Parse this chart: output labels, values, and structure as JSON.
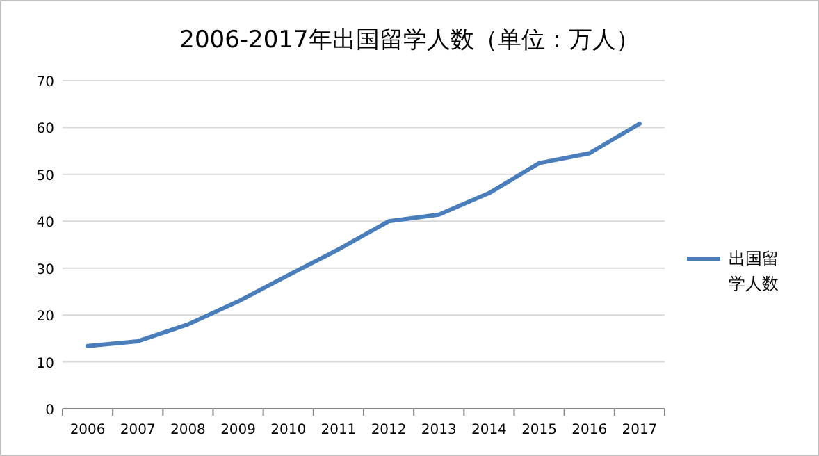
{
  "chart_data": {
    "type": "line",
    "title": "2006-2017年出国留学人数（单位：万人）",
    "categories": [
      "2006",
      "2007",
      "2008",
      "2009",
      "2010",
      "2011",
      "2012",
      "2013",
      "2014",
      "2015",
      "2016",
      "2017"
    ],
    "series": [
      {
        "name": "出国留学人数",
        "color": "#4a7ebb",
        "values": [
          13.4,
          14.4,
          18.0,
          22.9,
          28.5,
          34.0,
          40.0,
          41.4,
          46.0,
          52.4,
          54.5,
          60.8
        ]
      }
    ],
    "ylim": [
      0,
      70
    ],
    "yticks": [
      0,
      10,
      20,
      30,
      40,
      50,
      60,
      70
    ],
    "grid": "y",
    "legend": "right",
    "marker": "none",
    "line_style": "solid"
  }
}
